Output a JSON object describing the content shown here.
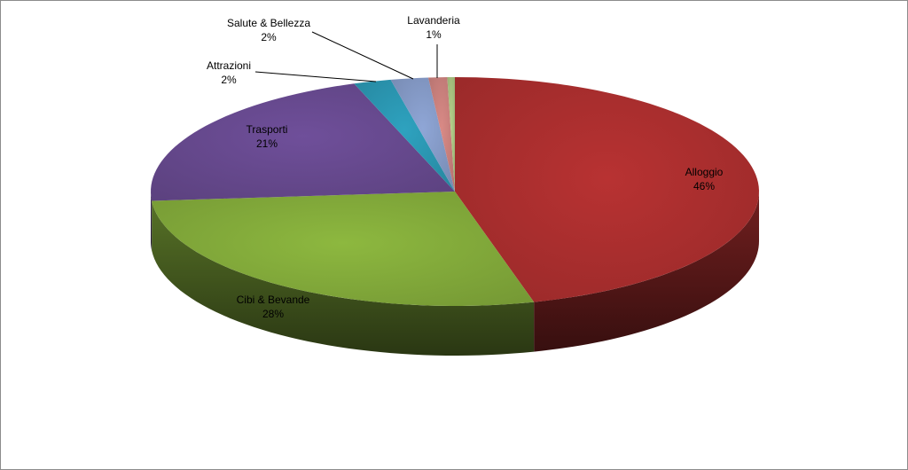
{
  "chart_data": {
    "type": "pie",
    "title": "",
    "style": "3d-exploded-none",
    "slices": [
      {
        "label": "Alloggio",
        "value": 46,
        "value_label": "46%",
        "color": "#b83232"
      },
      {
        "label": "Cibi & Bevande",
        "value": 28,
        "value_label": "28%",
        "color": "#8db83f"
      },
      {
        "label": "Trasporti",
        "value": 21,
        "value_label": "21%",
        "color": "#6f4f9a"
      },
      {
        "label": "Attrazioni",
        "value": 2,
        "value_label": "2%",
        "color": "#2ea2bf"
      },
      {
        "label": "Salute & Bellezza",
        "value": 2,
        "value_label": "2%",
        "color": "#8fa6d6"
      },
      {
        "label": "Lavanderia",
        "value": 1,
        "value_label": "1%",
        "color": "#d98a86"
      },
      {
        "label": "",
        "value": 0.4,
        "value_label": "",
        "color": "#b5d08a"
      }
    ]
  }
}
